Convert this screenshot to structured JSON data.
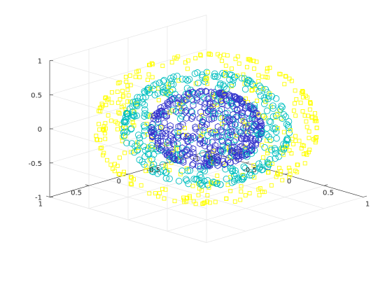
{
  "chart_data": {
    "type": "scatter",
    "projection": "3d",
    "grid": true,
    "xlabel": "",
    "ylabel": "",
    "zlabel": "",
    "xlim": [
      -1,
      1
    ],
    "ylim": [
      -1,
      1
    ],
    "zlim": [
      -1,
      1
    ],
    "x_ticks": [
      "-1",
      "-0.5",
      "0",
      "0.5",
      "1"
    ],
    "y_ticks": [
      "-1",
      "-0.5",
      "0",
      "0.5",
      "1"
    ],
    "z_ticks": [
      "-1",
      "-0.5",
      "0",
      "0.5",
      "1"
    ],
    "series": [
      {
        "marker": "square",
        "color": "#ffff00",
        "shape": "sphere",
        "radius": 1.0,
        "approx_points": 400
      },
      {
        "marker": "circle",
        "color": "#00bfbf",
        "shape": "sphere",
        "radius": 0.75,
        "approx_points": 400
      },
      {
        "marker": "hexagon",
        "color": "#3333cc",
        "shape": "sphere",
        "radius": 0.5,
        "approx_points": 400
      }
    ]
  }
}
